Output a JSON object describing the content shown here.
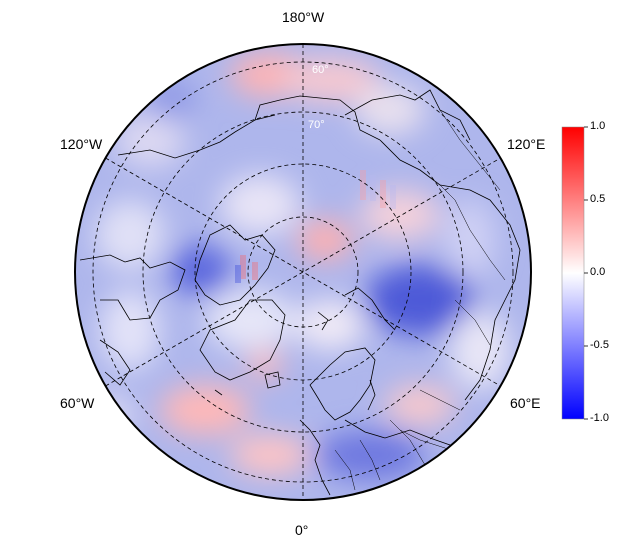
{
  "map": {
    "projection": "north-polar-stereographic",
    "longitude_labels": {
      "top": "180°W",
      "bottom": "0°",
      "upper_left": "120°W",
      "upper_right": "120°E",
      "lower_left": "60°W",
      "lower_right": "60°E"
    },
    "inner_faint_labels": [
      "60°",
      "70°"
    ],
    "features": [
      "coastlines",
      "country-borders",
      "latitude-circles",
      "meridians"
    ]
  },
  "colorbar": {
    "min": -1.0,
    "max": 1.0,
    "ticks": [
      "1.0",
      "0.5",
      "0.0",
      "-0.5",
      "-1.0"
    ],
    "colors": {
      "high": "#ff0000",
      "mid": "#ffffff",
      "low": "#0000ff"
    }
  }
}
